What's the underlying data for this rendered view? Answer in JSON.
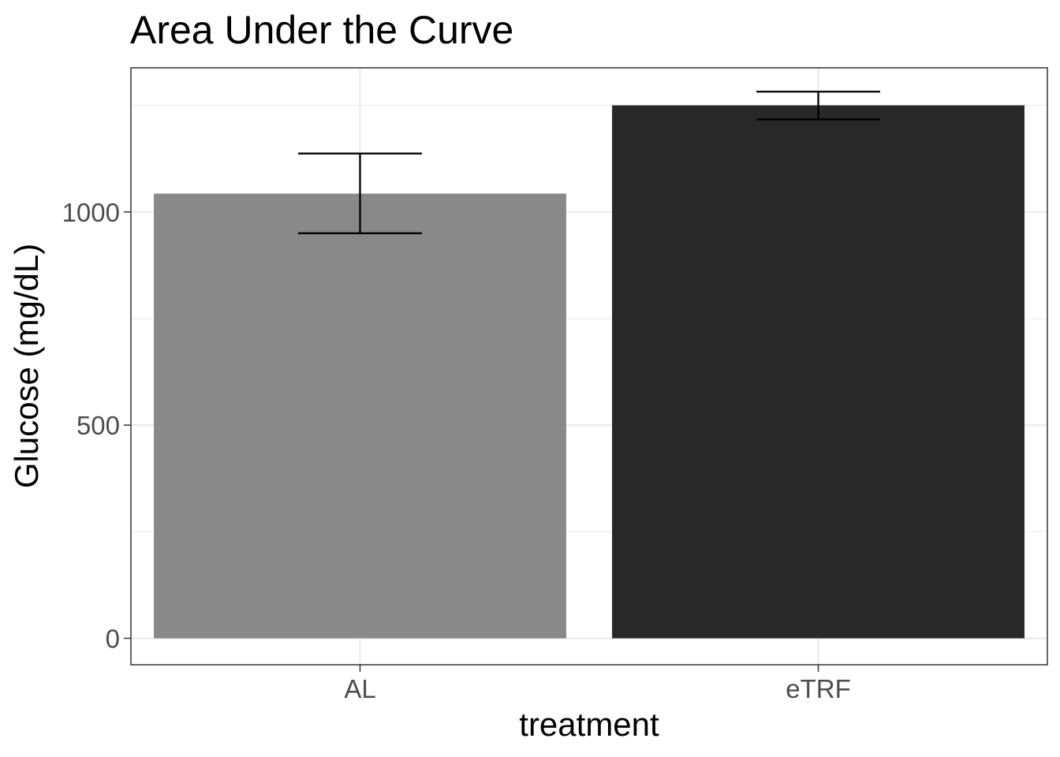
{
  "chart_data": {
    "type": "bar",
    "title": "Area Under the Curve",
    "xlabel": "treatment",
    "ylabel": "Glucose (mg/dL)",
    "categories": [
      "AL",
      "eTRF"
    ],
    "values": [
      1043,
      1250
    ],
    "error_bars": {
      "lower": [
        950,
        1217
      ],
      "upper": [
        1137,
        1282
      ]
    },
    "bar_colors": [
      "#898989",
      "#282828"
    ],
    "ylim": [
      -62,
      1338
    ],
    "y_ticks": [
      0,
      500,
      1000
    ],
    "y_tick_labels": [
      "0",
      "500",
      "1000"
    ],
    "grid": true,
    "legend": "none"
  }
}
